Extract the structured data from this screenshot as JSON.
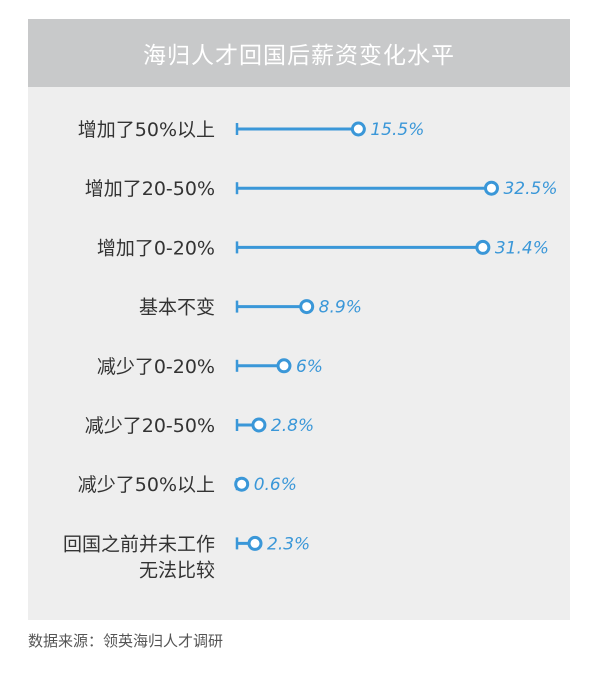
{
  "chart_data": {
    "type": "bar",
    "title": "海归人才回国后薪资变化水平",
    "categories": [
      [
        "增加了50%以上"
      ],
      [
        "增加了20-50%"
      ],
      [
        "增加了0-20%"
      ],
      [
        "基本不变"
      ],
      [
        "减少了0-20%"
      ],
      [
        "减少了20-50%"
      ],
      [
        "减少了50%以上"
      ],
      [
        "回国之前并未工作",
        "无法比较"
      ]
    ],
    "values": [
      15.5,
      32.5,
      31.4,
      8.9,
      6,
      2.8,
      0.6,
      2.3
    ],
    "value_labels": [
      "15.5%",
      "32.5%",
      "31.4%",
      "8.9%",
      "6%",
      "2.8%",
      "0.6%",
      "2.3%"
    ],
    "xlim": [
      0,
      35
    ],
    "orientation": "horizontal",
    "style": "lollipop",
    "grid": false,
    "legend": "none",
    "colors": {
      "line": "#3a97d8",
      "marker_fill": "#ffffff",
      "value_label": "#3a97d8",
      "category_label": "#333333",
      "header_bg": "#c8c9ca",
      "panel_bg": "#eeeeee"
    }
  },
  "source": "数据来源：领英海归人才调研"
}
